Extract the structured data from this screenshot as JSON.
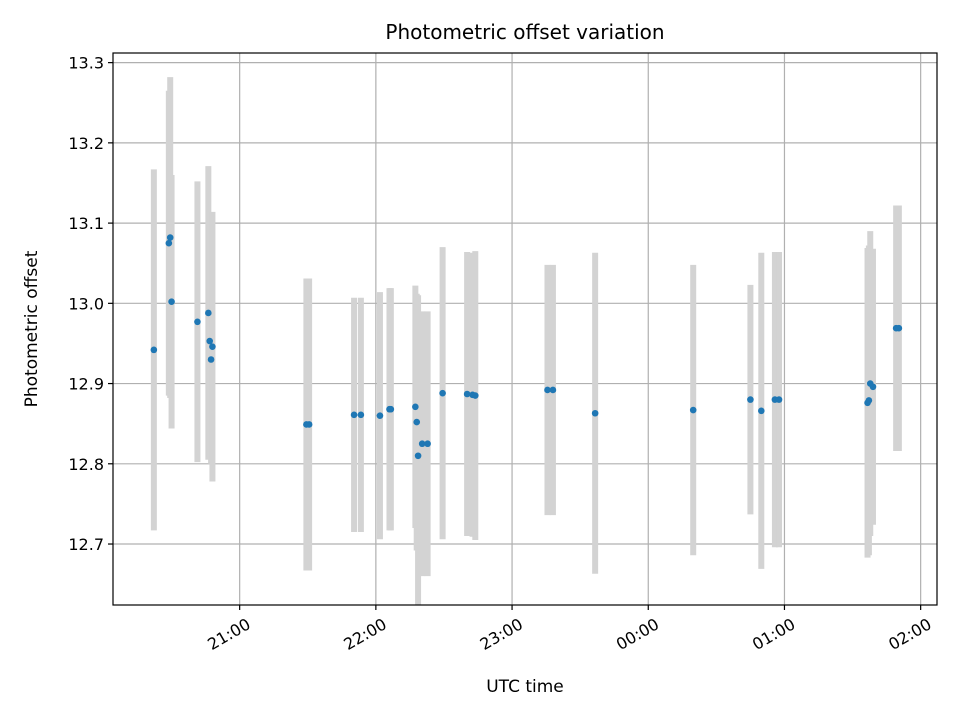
{
  "chart_data": {
    "type": "scatter",
    "title": "Photometric offset variation",
    "xlabel": "UTC time",
    "ylabel": "Photometric offset",
    "grid": true,
    "x_unit": "UTC hours (24 and above = after midnight)",
    "xlim": [
      20.07,
      26.12
    ],
    "ylim": [
      12.624,
      13.312
    ],
    "x_ticks": [
      {
        "value": 21,
        "label": "21:00"
      },
      {
        "value": 22,
        "label": "22:00"
      },
      {
        "value": 23,
        "label": "23:00"
      },
      {
        "value": 24,
        "label": "00:00"
      },
      {
        "value": 25,
        "label": "01:00"
      },
      {
        "value": 26,
        "label": "02:00"
      }
    ],
    "y_ticks": [
      {
        "value": 12.7,
        "label": "12.7"
      },
      {
        "value": 12.8,
        "label": "12.8"
      },
      {
        "value": 12.9,
        "label": "12.9"
      },
      {
        "value": 13.0,
        "label": "13.0"
      },
      {
        "value": 13.1,
        "label": "13.1"
      },
      {
        "value": 13.2,
        "label": "13.2"
      },
      {
        "value": 13.3,
        "label": "13.3"
      }
    ],
    "colors": {
      "point": "#1f77b4",
      "errorbar": "#d3d3d3",
      "grid": "#b0b0b0"
    },
    "points": [
      {
        "x": 20.37,
        "y": 12.942,
        "err": 0.225
      },
      {
        "x": 20.48,
        "y": 13.075,
        "err": 0.19
      },
      {
        "x": 20.49,
        "y": 13.082,
        "err": 0.2
      },
      {
        "x": 20.5,
        "y": 13.002,
        "err": 0.158
      },
      {
        "x": 20.69,
        "y": 12.977,
        "err": 0.175
      },
      {
        "x": 20.77,
        "y": 12.988,
        "err": 0.183
      },
      {
        "x": 20.78,
        "y": 12.953,
        "err": 0.145
      },
      {
        "x": 20.79,
        "y": 12.93,
        "err": 0.13
      },
      {
        "x": 20.8,
        "y": 12.946,
        "err": 0.168
      },
      {
        "x": 21.49,
        "y": 12.849,
        "err": 0.182
      },
      {
        "x": 21.51,
        "y": 12.849,
        "err": 0.182
      },
      {
        "x": 21.84,
        "y": 12.861,
        "err": 0.146
      },
      {
        "x": 21.89,
        "y": 12.861,
        "err": 0.146
      },
      {
        "x": 22.03,
        "y": 12.86,
        "err": 0.154
      },
      {
        "x": 22.1,
        "y": 12.868,
        "err": 0.151
      },
      {
        "x": 22.11,
        "y": 12.868,
        "err": 0.151
      },
      {
        "x": 22.29,
        "y": 12.871,
        "err": 0.151
      },
      {
        "x": 22.3,
        "y": 12.852,
        "err": 0.16
      },
      {
        "x": 22.31,
        "y": 12.81,
        "err": 0.2
      },
      {
        "x": 22.34,
        "y": 12.825,
        "err": 0.165
      },
      {
        "x": 22.38,
        "y": 12.825,
        "err": 0.165
      },
      {
        "x": 22.49,
        "y": 12.888,
        "err": 0.182
      },
      {
        "x": 22.67,
        "y": 12.887,
        "err": 0.177
      },
      {
        "x": 22.71,
        "y": 12.886,
        "err": 0.177
      },
      {
        "x": 22.73,
        "y": 12.885,
        "err": 0.18
      },
      {
        "x": 23.26,
        "y": 12.892,
        "err": 0.156
      },
      {
        "x": 23.3,
        "y": 12.892,
        "err": 0.156
      },
      {
        "x": 23.61,
        "y": 12.863,
        "err": 0.2
      },
      {
        "x": 24.33,
        "y": 12.867,
        "err": 0.181
      },
      {
        "x": 24.75,
        "y": 12.88,
        "err": 0.143
      },
      {
        "x": 24.83,
        "y": 12.866,
        "err": 0.197
      },
      {
        "x": 24.93,
        "y": 12.88,
        "err": 0.184
      },
      {
        "x": 24.96,
        "y": 12.88,
        "err": 0.184
      },
      {
        "x": 25.61,
        "y": 12.876,
        "err": 0.193
      },
      {
        "x": 25.62,
        "y": 12.879,
        "err": 0.193
      },
      {
        "x": 25.63,
        "y": 12.9,
        "err": 0.19
      },
      {
        "x": 25.65,
        "y": 12.896,
        "err": 0.172
      },
      {
        "x": 25.82,
        "y": 12.969,
        "err": 0.153
      },
      {
        "x": 25.84,
        "y": 12.969,
        "err": 0.153
      }
    ]
  }
}
